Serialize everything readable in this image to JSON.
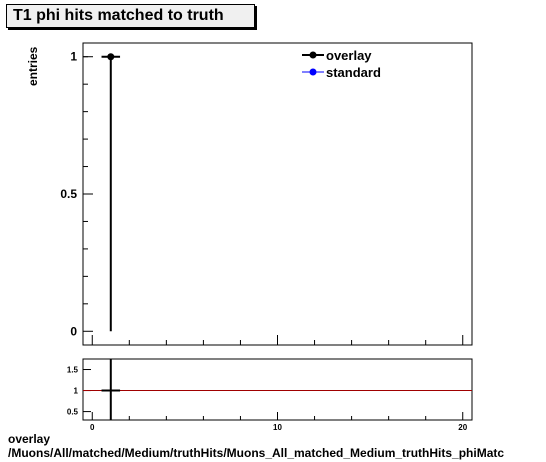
{
  "title": "T1 phi hits matched to truth",
  "ylabel": "entries",
  "footer": {
    "line1": "overlay",
    "line2": "/Muons/All/matched/Medium/truthHits/Muons_All_matched_Medium_truthHits_phiMatc"
  },
  "chart_data": [
    {
      "type": "scatter",
      "series": [
        {
          "name": "overlay",
          "color": "#000000",
          "points": [
            {
              "x": 1,
              "y": 1,
              "xerr": 0.5,
              "yerr": 1
            }
          ]
        },
        {
          "name": "standard",
          "color": "#0000ff",
          "points": []
        }
      ],
      "xlim": [
        -0.5,
        20.5
      ],
      "ylim": [
        -0.05,
        1.05
      ],
      "yticks": [
        "0",
        "0.5",
        "1"
      ],
      "legend": "top-right",
      "ylabel": "entries"
    },
    {
      "type": "line",
      "xlim": [
        -0.5,
        20.5
      ],
      "ylim": [
        0.3,
        1.75
      ],
      "xticks": [
        "0",
        "10",
        "20"
      ],
      "yticks": [
        "0.5",
        "1",
        "1.5"
      ],
      "reference_line": 1,
      "reference_color": "#a00000",
      "points": [
        {
          "x": 1,
          "y": 1,
          "xerr": 0.5
        }
      ]
    }
  ]
}
